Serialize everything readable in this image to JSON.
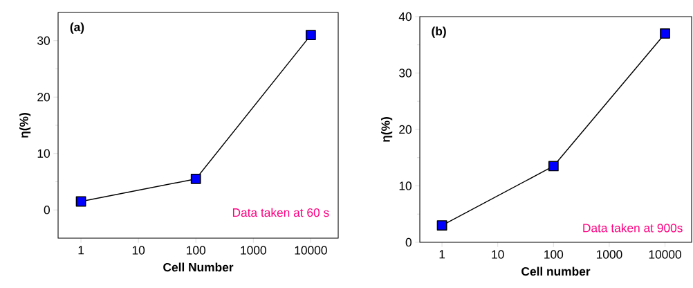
{
  "chart_data": [
    {
      "type": "line",
      "xlabel": "Cell Number",
      "ylabel": "η(%)",
      "log": "x",
      "marker": "square",
      "line_style": "solid",
      "x": [
        1,
        100,
        10000
      ],
      "values": [
        1.5,
        5.5,
        31
      ],
      "color": "#0000ff",
      "xlim": [
        0.4,
        30000
      ],
      "ylim": [
        -5,
        35
      ],
      "xticks": [
        1,
        10,
        100,
        1000,
        10000
      ],
      "yticks": [
        0,
        10,
        20,
        30
      ],
      "annotations": [
        "(a)",
        "Data taken at 60 s"
      ]
    },
    {
      "type": "line",
      "xlabel": "Cell number",
      "ylabel": "η(%)",
      "log": "x",
      "marker": "square",
      "line_style": "solid",
      "x": [
        1,
        100,
        10000
      ],
      "values": [
        3,
        13.5,
        37
      ],
      "color": "#0000ff",
      "xlim": [
        0.4,
        30000
      ],
      "ylim": [
        0,
        40
      ],
      "xticks": [
        1,
        10,
        100,
        1000,
        10000
      ],
      "yticks": [
        0,
        10,
        20,
        30,
        40
      ],
      "annotations": [
        "(b)",
        "Data taken at 900s"
      ]
    }
  ]
}
